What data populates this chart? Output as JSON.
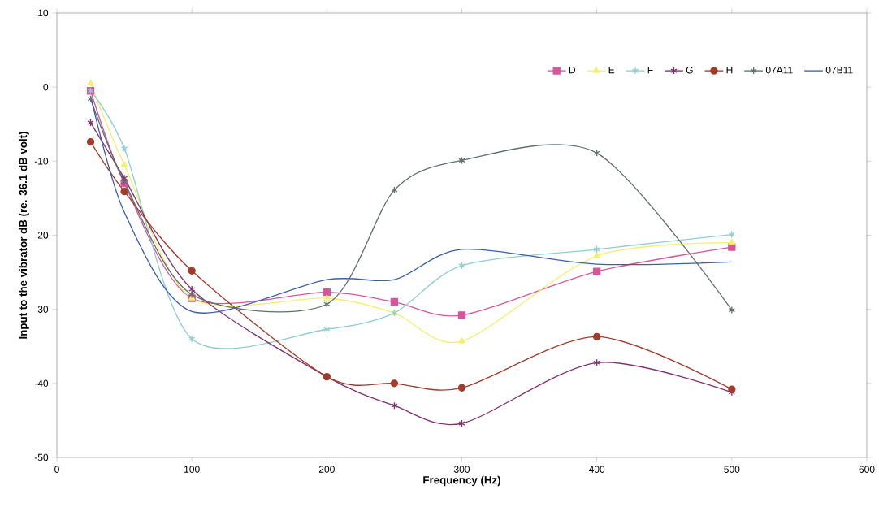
{
  "chart_data": {
    "type": "line",
    "xlabel": "Frequency (Hz)",
    "ylabel": "Input to the vibrator dB (re. 36.1 dB volt)",
    "x": [
      25,
      50,
      100,
      200,
      250,
      300,
      400,
      500
    ],
    "xlim": [
      0,
      600
    ],
    "xticks": [
      0,
      100,
      200,
      300,
      400,
      500,
      600
    ],
    "ylim": [
      -50,
      10
    ],
    "yticks": [
      -50,
      -40,
      -30,
      -20,
      -10,
      0,
      10
    ],
    "grid": false,
    "legend": "top right",
    "series": [
      {
        "name": "D",
        "color": "#d9559b",
        "marker": "square",
        "values": [
          -0.5,
          -13,
          -28.5,
          -27.7,
          -29,
          -30.8,
          -24.9,
          -21.6
        ]
      },
      {
        "name": "E",
        "color": "#f2f070",
        "marker": "triangle",
        "values": [
          0.5,
          -10.5,
          -28.5,
          -28.5,
          -30.5,
          -34.3,
          -22.8,
          -21
        ]
      },
      {
        "name": "F",
        "color": "#8fcfd0",
        "marker": "cross",
        "values": [
          -0.5,
          -8.3,
          -34,
          -32.7,
          -30.5,
          -24.1,
          -21.9,
          -19.9
        ]
      },
      {
        "name": "G",
        "color": "#80306f",
        "marker": "cross",
        "values": [
          -4.8,
          -12.3,
          -27.3,
          -39.1,
          -43,
          -45.4,
          -37.2,
          -41.2
        ]
      },
      {
        "name": "H",
        "color": "#a33a2a",
        "marker": "circle",
        "values": [
          -7.4,
          -14.1,
          -24.8,
          -39.1,
          -40,
          -40.6,
          -33.7,
          -40.8
        ]
      },
      {
        "name": "07A11",
        "color": "#607070",
        "marker": "cross",
        "values": [
          -1.6,
          -12.8,
          -28,
          -29.3,
          -13.9,
          -9.9,
          -8.9,
          -30.1
        ]
      },
      {
        "name": "07B11",
        "color": "#3a5fb0",
        "marker": "none",
        "values": [
          -1.2,
          -16.9,
          -30.3,
          -26,
          -26,
          -21.9,
          -23.9,
          -23.6
        ]
      }
    ]
  }
}
